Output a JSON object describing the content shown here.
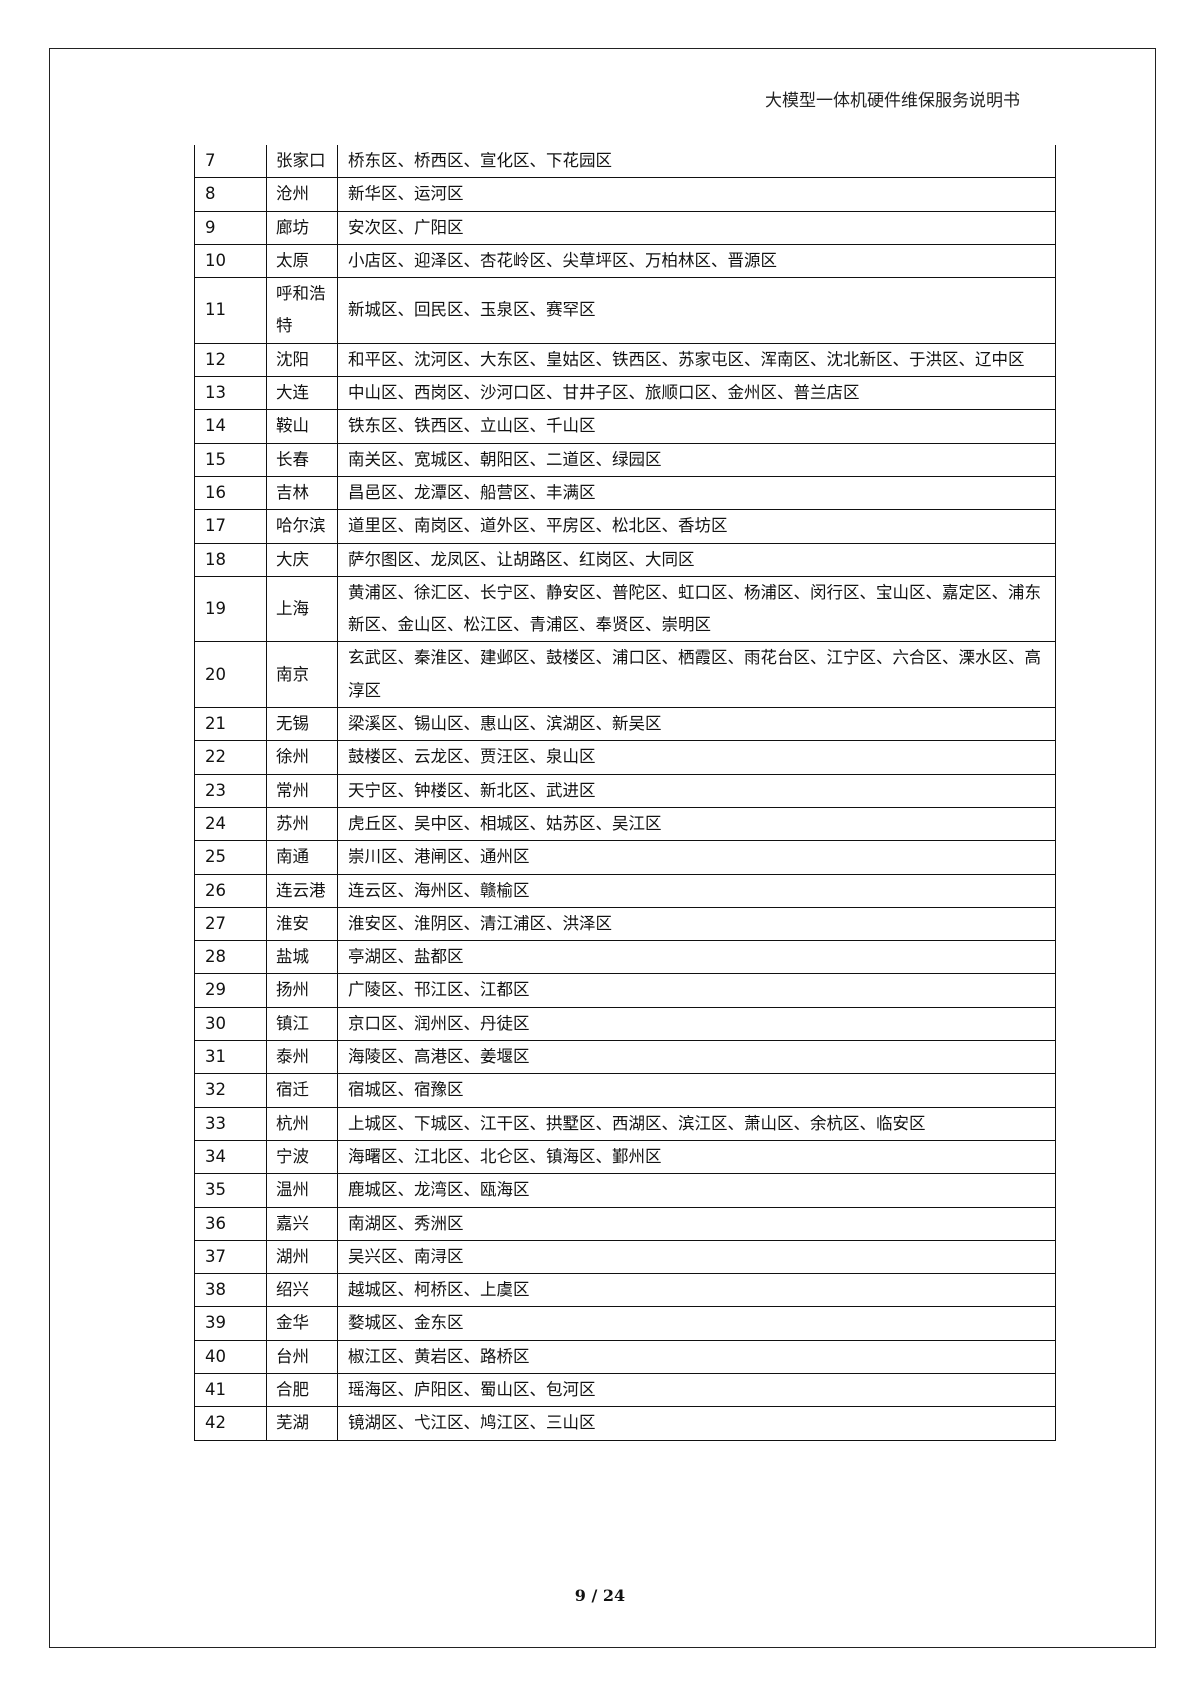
{
  "header": {
    "title": "大模型一体机硬件维保服务说明书"
  },
  "table": {
    "rows": [
      {
        "no": "7",
        "city": "张家口",
        "areas": "桥东区、桥西区、宣化区、下花园区"
      },
      {
        "no": "8",
        "city": "沧州",
        "areas": "新华区、运河区"
      },
      {
        "no": "9",
        "city": "廊坊",
        "areas": "安次区、广阳区"
      },
      {
        "no": "10",
        "city": "太原",
        "areas": "小店区、迎泽区、杏花岭区、尖草坪区、万柏林区、晋源区"
      },
      {
        "no": "11",
        "city": "呼和浩特",
        "areas": "新城区、回民区、玉泉区、赛罕区"
      },
      {
        "no": "12",
        "city": "沈阳",
        "areas": "和平区、沈河区、大东区、皇姑区、铁西区、苏家屯区、浑南区、沈北新区、于洪区、辽中区"
      },
      {
        "no": "13",
        "city": "大连",
        "areas": "中山区、西岗区、沙河口区、甘井子区、旅顺口区、金州区、普兰店区"
      },
      {
        "no": "14",
        "city": "鞍山",
        "areas": "铁东区、铁西区、立山区、千山区"
      },
      {
        "no": "15",
        "city": "长春",
        "areas": "南关区、宽城区、朝阳区、二道区、绿园区"
      },
      {
        "no": "16",
        "city": "吉林",
        "areas": "昌邑区、龙潭区、船营区、丰满区"
      },
      {
        "no": "17",
        "city": "哈尔滨",
        "areas": "道里区、南岗区、道外区、平房区、松北区、香坊区"
      },
      {
        "no": "18",
        "city": "大庆",
        "areas": "萨尔图区、龙凤区、让胡路区、红岗区、大同区"
      },
      {
        "no": "19",
        "city": "上海",
        "areas": "黄浦区、徐汇区、长宁区、静安区、普陀区、虹口区、杨浦区、闵行区、宝山区、嘉定区、浦东新区、金山区、松江区、青浦区、奉贤区、崇明区"
      },
      {
        "no": "20",
        "city": "南京",
        "areas": "玄武区、秦淮区、建邺区、鼓楼区、浦口区、栖霞区、雨花台区、江宁区、六合区、溧水区、高淳区"
      },
      {
        "no": "21",
        "city": "无锡",
        "areas": "梁溪区、锡山区、惠山区、滨湖区、新吴区"
      },
      {
        "no": "22",
        "city": "徐州",
        "areas": "鼓楼区、云龙区、贾汪区、泉山区"
      },
      {
        "no": "23",
        "city": "常州",
        "areas": "天宁区、钟楼区、新北区、武进区"
      },
      {
        "no": "24",
        "city": "苏州",
        "areas": "虎丘区、吴中区、相城区、姑苏区、吴江区"
      },
      {
        "no": "25",
        "city": "南通",
        "areas": "崇川区、港闸区、通州区"
      },
      {
        "no": "26",
        "city": "连云港",
        "areas": "连云区、海州区、赣榆区"
      },
      {
        "no": "27",
        "city": "淮安",
        "areas": "淮安区、淮阴区、清江浦区、洪泽区"
      },
      {
        "no": "28",
        "city": "盐城",
        "areas": "亭湖区、盐都区"
      },
      {
        "no": "29",
        "city": "扬州",
        "areas": "广陵区、邗江区、江都区"
      },
      {
        "no": "30",
        "city": "镇江",
        "areas": "京口区、润州区、丹徒区"
      },
      {
        "no": "31",
        "city": "泰州",
        "areas": "海陵区、高港区、姜堰区"
      },
      {
        "no": "32",
        "city": "宿迁",
        "areas": "宿城区、宿豫区"
      },
      {
        "no": "33",
        "city": "杭州",
        "areas": "上城区、下城区、江干区、拱墅区、西湖区、滨江区、萧山区、余杭区、临安区"
      },
      {
        "no": "34",
        "city": "宁波",
        "areas": "海曙区、江北区、北仑区、镇海区、鄞州区"
      },
      {
        "no": "35",
        "city": "温州",
        "areas": "鹿城区、龙湾区、瓯海区"
      },
      {
        "no": "36",
        "city": "嘉兴",
        "areas": "南湖区、秀洲区"
      },
      {
        "no": "37",
        "city": "湖州",
        "areas": "吴兴区、南浔区"
      },
      {
        "no": "38",
        "city": "绍兴",
        "areas": "越城区、柯桥区、上虞区"
      },
      {
        "no": "39",
        "city": "金华",
        "areas": "婺城区、金东区"
      },
      {
        "no": "40",
        "city": "台州",
        "areas": "椒江区、黄岩区、路桥区"
      },
      {
        "no": "41",
        "city": "合肥",
        "areas": "瑶海区、庐阳区、蜀山区、包河区"
      },
      {
        "no": "42",
        "city": "芜湖",
        "areas": "镜湖区、弋江区、鸠江区、三山区"
      }
    ]
  },
  "footer": {
    "page": "9 / 24"
  }
}
